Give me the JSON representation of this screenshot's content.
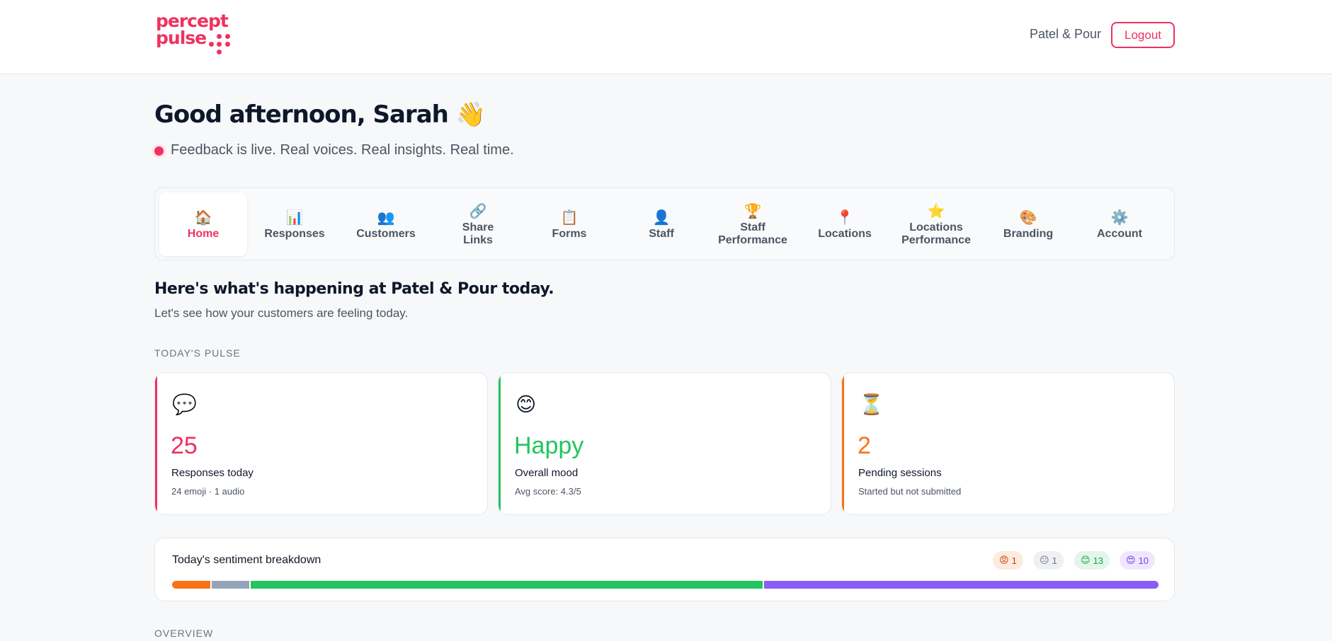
{
  "brand": {
    "logo_line1": "percept",
    "logo_line2": "pulse",
    "accent": "#f0315f"
  },
  "header": {
    "account_name": "Patel & Pour",
    "logout_label": "Logout"
  },
  "greeting": {
    "title": "Good afternoon, Sarah 👋",
    "tagline": "Feedback is live. Real voices. Real insights. Real time."
  },
  "tabs": [
    {
      "label": "Home",
      "icon": "🏠",
      "icon_name": "house-icon",
      "active": true
    },
    {
      "label": "Responses",
      "icon": "📊",
      "icon_name": "bar-chart-icon"
    },
    {
      "label": "Customers",
      "icon": "👥",
      "icon_name": "people-icon"
    },
    {
      "label": "Share Links",
      "icon": "🔗",
      "icon_name": "link-icon"
    },
    {
      "label": "Forms",
      "icon": "📋",
      "icon_name": "clipboard-icon"
    },
    {
      "label": "Staff",
      "icon": "👤",
      "icon_name": "person-icon"
    },
    {
      "label": "Staff Performance",
      "icon": "🏆",
      "icon_name": "trophy-icon"
    },
    {
      "label": "Locations",
      "icon": "📍",
      "icon_name": "pin-icon"
    },
    {
      "label": "Locations Performance",
      "icon": "⭐",
      "icon_name": "star-icon"
    },
    {
      "label": "Branding",
      "icon": "🎨",
      "icon_name": "palette-icon"
    },
    {
      "label": "Account",
      "icon": "⚙️",
      "icon_name": "gear-icon"
    }
  ],
  "summary": {
    "title": "Here's what's happening at Patel & Pour today.",
    "subtitle": "Let's see how your customers are feeling today."
  },
  "pulse": {
    "eyebrow": "TODAY'S PULSE",
    "cards": [
      {
        "icon": "💬",
        "icon_name": "speech-bubble-icon",
        "value": "25",
        "label": "Responses today",
        "meta": "24 emoji · 1 audio",
        "color": "#f0315f"
      },
      {
        "icon": "😊",
        "icon_name": "smiling-face-icon",
        "value": "Happy",
        "label": "Overall mood",
        "meta": "Avg score: 4.3/5",
        "color": "#22c55e"
      },
      {
        "icon": "⏳",
        "icon_name": "hourglass-icon",
        "value": "2",
        "label": "Pending sessions",
        "meta": "Started but not submitted",
        "color": "#f97316"
      }
    ]
  },
  "sentiment": {
    "title": "Today's sentiment breakdown",
    "chips": [
      {
        "emoji": "😡",
        "icon_name": "angry-face-icon",
        "count": "1",
        "bg": "#fdebe0",
        "fg": "#c2410c"
      },
      {
        "emoji": "😐",
        "icon_name": "neutral-face-icon",
        "count": "1",
        "bg": "#eef0f3",
        "fg": "#6b7280"
      },
      {
        "emoji": "😊",
        "icon_name": "happy-face-icon",
        "count": "13",
        "bg": "#e3f6e9",
        "fg": "#16a34a"
      },
      {
        "emoji": "😍",
        "icon_name": "heart-eyes-face-icon",
        "count": "10",
        "bg": "#efe7fd",
        "fg": "#7c3aed"
      }
    ],
    "segments": [
      {
        "value": 1,
        "color": "#f97316"
      },
      {
        "value": 1,
        "color": "#94a3b8"
      },
      {
        "value": 13,
        "color": "#22c55e"
      },
      {
        "value": 10,
        "color": "#8b5cf6"
      }
    ]
  },
  "overview": {
    "eyebrow": "OVERVIEW"
  }
}
